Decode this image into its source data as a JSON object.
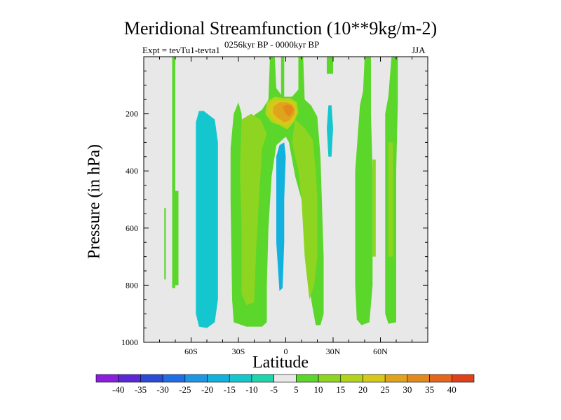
{
  "chart_data": {
    "type": "heatmap",
    "title": "Meridional Streamfunction (10**9kg/m-2)",
    "subtitle": "0256kyr BP - 0000kyr BP",
    "experiment": "Expt = tevTu1-tevta1",
    "season": "JJA",
    "xlabel": "Latitude",
    "ylabel": "Pressure (in hPa)",
    "xlim": [
      -90,
      90
    ],
    "ylim": [
      1000,
      0
    ],
    "x_ticks": [
      {
        "value": -60,
        "label": "60S"
      },
      {
        "value": -30,
        "label": "30S"
      },
      {
        "value": 0,
        "label": "0"
      },
      {
        "value": 30,
        "label": "30N"
      },
      {
        "value": 60,
        "label": "60N"
      }
    ],
    "y_ticks": [
      {
        "value": 200,
        "label": "200"
      },
      {
        "value": 400,
        "label": "400"
      },
      {
        "value": 600,
        "label": "600"
      },
      {
        "value": 800,
        "label": "800"
      },
      {
        "value": 1000,
        "label": "1000"
      }
    ],
    "colorbar": {
      "levels": [
        "-40",
        "-35",
        "-30",
        "-25",
        "-20",
        "-15",
        "-10",
        "-5",
        "5",
        "10",
        "15",
        "20",
        "25",
        "30",
        "35",
        "40"
      ],
      "colors": [
        "#8a1fe0",
        "#5a28d8",
        "#2c4ad8",
        "#1f6ee6",
        "#1e96e6",
        "#12b2df",
        "#14c7cf",
        "#1fd6ac",
        "#e8e8e8",
        "#5bd62a",
        "#8ed521",
        "#b2d51b",
        "#d6c91a",
        "#e0a41c",
        "#e38a1c",
        "#e3661c",
        "#e0401a"
      ]
    },
    "regions": [
      {
        "value": 7,
        "points": [
          [
            -72,
            0
          ],
          [
            -70,
            0
          ],
          [
            -70,
            810
          ],
          [
            -72,
            810
          ]
        ]
      },
      {
        "value": 7,
        "points": [
          [
            -77,
            530
          ],
          [
            -76,
            530
          ],
          [
            -76,
            780
          ],
          [
            -77,
            780
          ]
        ]
      },
      {
        "value": 7,
        "points": [
          [
            -70,
            470
          ],
          [
            -68,
            470
          ],
          [
            -68,
            800
          ],
          [
            -70,
            800
          ]
        ]
      },
      {
        "value": -12,
        "points": [
          [
            -55,
            190
          ],
          [
            -52,
            190
          ],
          [
            -45,
            220
          ],
          [
            -43,
            300
          ],
          [
            -43,
            600
          ],
          [
            -43,
            850
          ],
          [
            -45,
            930
          ],
          [
            -50,
            950
          ],
          [
            -55,
            945
          ],
          [
            -57,
            900
          ],
          [
            -57,
            500
          ],
          [
            -57,
            230
          ]
        ]
      },
      {
        "value": 7,
        "points": [
          [
            -10,
            0
          ],
          [
            -7,
            0
          ],
          [
            -6,
            110
          ],
          [
            -2,
            140
          ],
          [
            4,
            140
          ],
          [
            8,
            115
          ],
          [
            8,
            0
          ],
          [
            11,
            0
          ],
          [
            12,
            150
          ],
          [
            16,
            170
          ],
          [
            20,
            210
          ],
          [
            22,
            350
          ],
          [
            24,
            700
          ],
          [
            24,
            900
          ],
          [
            22,
            940
          ],
          [
            19,
            940
          ],
          [
            17,
            880
          ],
          [
            13,
            750
          ],
          [
            10,
            500
          ],
          [
            6,
            420
          ],
          [
            2,
            300
          ],
          [
            0,
            280
          ],
          [
            -6,
            310
          ],
          [
            -9,
            420
          ],
          [
            -11,
            600
          ],
          [
            -12,
            800
          ],
          [
            -12,
            930
          ],
          [
            -15,
            945
          ],
          [
            -25,
            945
          ],
          [
            -33,
            930
          ],
          [
            -34,
            850
          ],
          [
            -35,
            500
          ],
          [
            -35,
            320
          ],
          [
            -33,
            200
          ],
          [
            -30,
            160
          ],
          [
            -28,
            200
          ],
          [
            -27,
            330
          ],
          [
            -24,
            240
          ],
          [
            -20,
            205
          ],
          [
            -15,
            185
          ],
          [
            -11,
            150
          ]
        ]
      },
      {
        "value": 7,
        "points": [
          [
            -3,
            0
          ],
          [
            -1,
            0
          ],
          [
            -1,
            140
          ],
          [
            -3,
            140
          ]
        ]
      },
      {
        "value": 7,
        "points": [
          [
            26,
            0
          ],
          [
            30,
            0
          ],
          [
            30,
            60
          ],
          [
            26,
            60
          ]
        ]
      },
      {
        "value": -12,
        "points": [
          [
            27,
            170
          ],
          [
            29,
            170
          ],
          [
            30,
            250
          ],
          [
            29,
            350
          ],
          [
            27,
            350
          ],
          [
            26,
            250
          ]
        ]
      },
      {
        "value": 7,
        "points": [
          [
            50,
            0
          ],
          [
            54,
            0
          ],
          [
            54,
            200
          ],
          [
            55,
            400
          ],
          [
            55,
            800
          ],
          [
            53,
            930
          ],
          [
            48,
            940
          ],
          [
            45,
            920
          ],
          [
            44,
            800
          ],
          [
            44,
            400
          ],
          [
            47,
            170
          ],
          [
            49,
            120
          ]
        ]
      },
      {
        "value": 7,
        "points": [
          [
            67,
            0
          ],
          [
            71,
            0
          ],
          [
            71,
            160
          ],
          [
            70,
            400
          ],
          [
            70,
            700
          ],
          [
            70,
            930
          ],
          [
            65,
            935
          ],
          [
            63,
            900
          ],
          [
            63,
            600
          ],
          [
            63,
            200
          ],
          [
            65,
            140
          ]
        ]
      },
      {
        "value": 12,
        "points": [
          [
            -28,
            220
          ],
          [
            -22,
            200
          ],
          [
            -16,
            220
          ],
          [
            -12,
            270
          ],
          [
            -15,
            320
          ],
          [
            -17,
            500
          ],
          [
            -19,
            700
          ],
          [
            -20,
            860
          ],
          [
            -25,
            870
          ],
          [
            -28,
            830
          ],
          [
            -28,
            600
          ],
          [
            -29,
            400
          ]
        ]
      },
      {
        "value": 12,
        "points": [
          [
            6,
            220
          ],
          [
            12,
            250
          ],
          [
            17,
            290
          ],
          [
            19,
            400
          ],
          [
            20,
            500
          ],
          [
            20,
            700
          ],
          [
            18,
            800
          ],
          [
            15,
            850
          ],
          [
            12,
            700
          ],
          [
            10,
            500
          ],
          [
            8,
            400
          ],
          [
            4,
            300
          ]
        ]
      },
      {
        "value": 12,
        "points": [
          [
            55,
            360
          ],
          [
            57,
            360
          ],
          [
            57,
            700
          ],
          [
            55,
            700
          ]
        ]
      },
      {
        "value": 12,
        "points": [
          [
            65,
            300
          ],
          [
            68,
            300
          ],
          [
            68,
            700
          ],
          [
            65,
            700
          ]
        ]
      },
      {
        "value": 17,
        "points": [
          [
            -12,
            160
          ],
          [
            -7,
            140
          ],
          [
            -2,
            145
          ],
          [
            3,
            145
          ],
          [
            7,
            160
          ],
          [
            8,
            195
          ],
          [
            5,
            230
          ],
          [
            1,
            255
          ],
          [
            -4,
            240
          ],
          [
            -9,
            230
          ],
          [
            -13,
            200
          ]
        ]
      },
      {
        "value": 22,
        "points": [
          [
            -10,
            165
          ],
          [
            -6,
            150
          ],
          [
            -2,
            155
          ],
          [
            3,
            155
          ],
          [
            6,
            170
          ],
          [
            7,
            200
          ],
          [
            5,
            225
          ],
          [
            1,
            245
          ],
          [
            -4,
            235
          ],
          [
            -8,
            220
          ],
          [
            -11,
            195
          ]
        ]
      },
      {
        "value": 27,
        "points": [
          [
            -8,
            175
          ],
          [
            -4,
            160
          ],
          [
            1,
            160
          ],
          [
            4,
            168
          ],
          [
            6,
            185
          ],
          [
            5,
            205
          ],
          [
            2,
            225
          ],
          [
            -1,
            230
          ],
          [
            -5,
            215
          ],
          [
            -8,
            198
          ]
        ]
      },
      {
        "value": 32,
        "points": [
          [
            -2,
            173
          ],
          [
            1,
            168
          ],
          [
            4,
            172
          ],
          [
            5,
            185
          ],
          [
            4,
            198
          ],
          [
            2,
            210
          ],
          [
            0,
            200
          ],
          [
            -1,
            188
          ]
        ]
      },
      {
        "value": -17,
        "points": [
          [
            -4,
            310
          ],
          [
            -1,
            300
          ],
          [
            0,
            350
          ],
          [
            -1,
            500
          ],
          [
            -1,
            650
          ],
          [
            -2,
            810
          ],
          [
            -4,
            820
          ],
          [
            -6,
            650
          ],
          [
            -6,
            450
          ],
          [
            -6,
            350
          ]
        ]
      }
    ]
  }
}
